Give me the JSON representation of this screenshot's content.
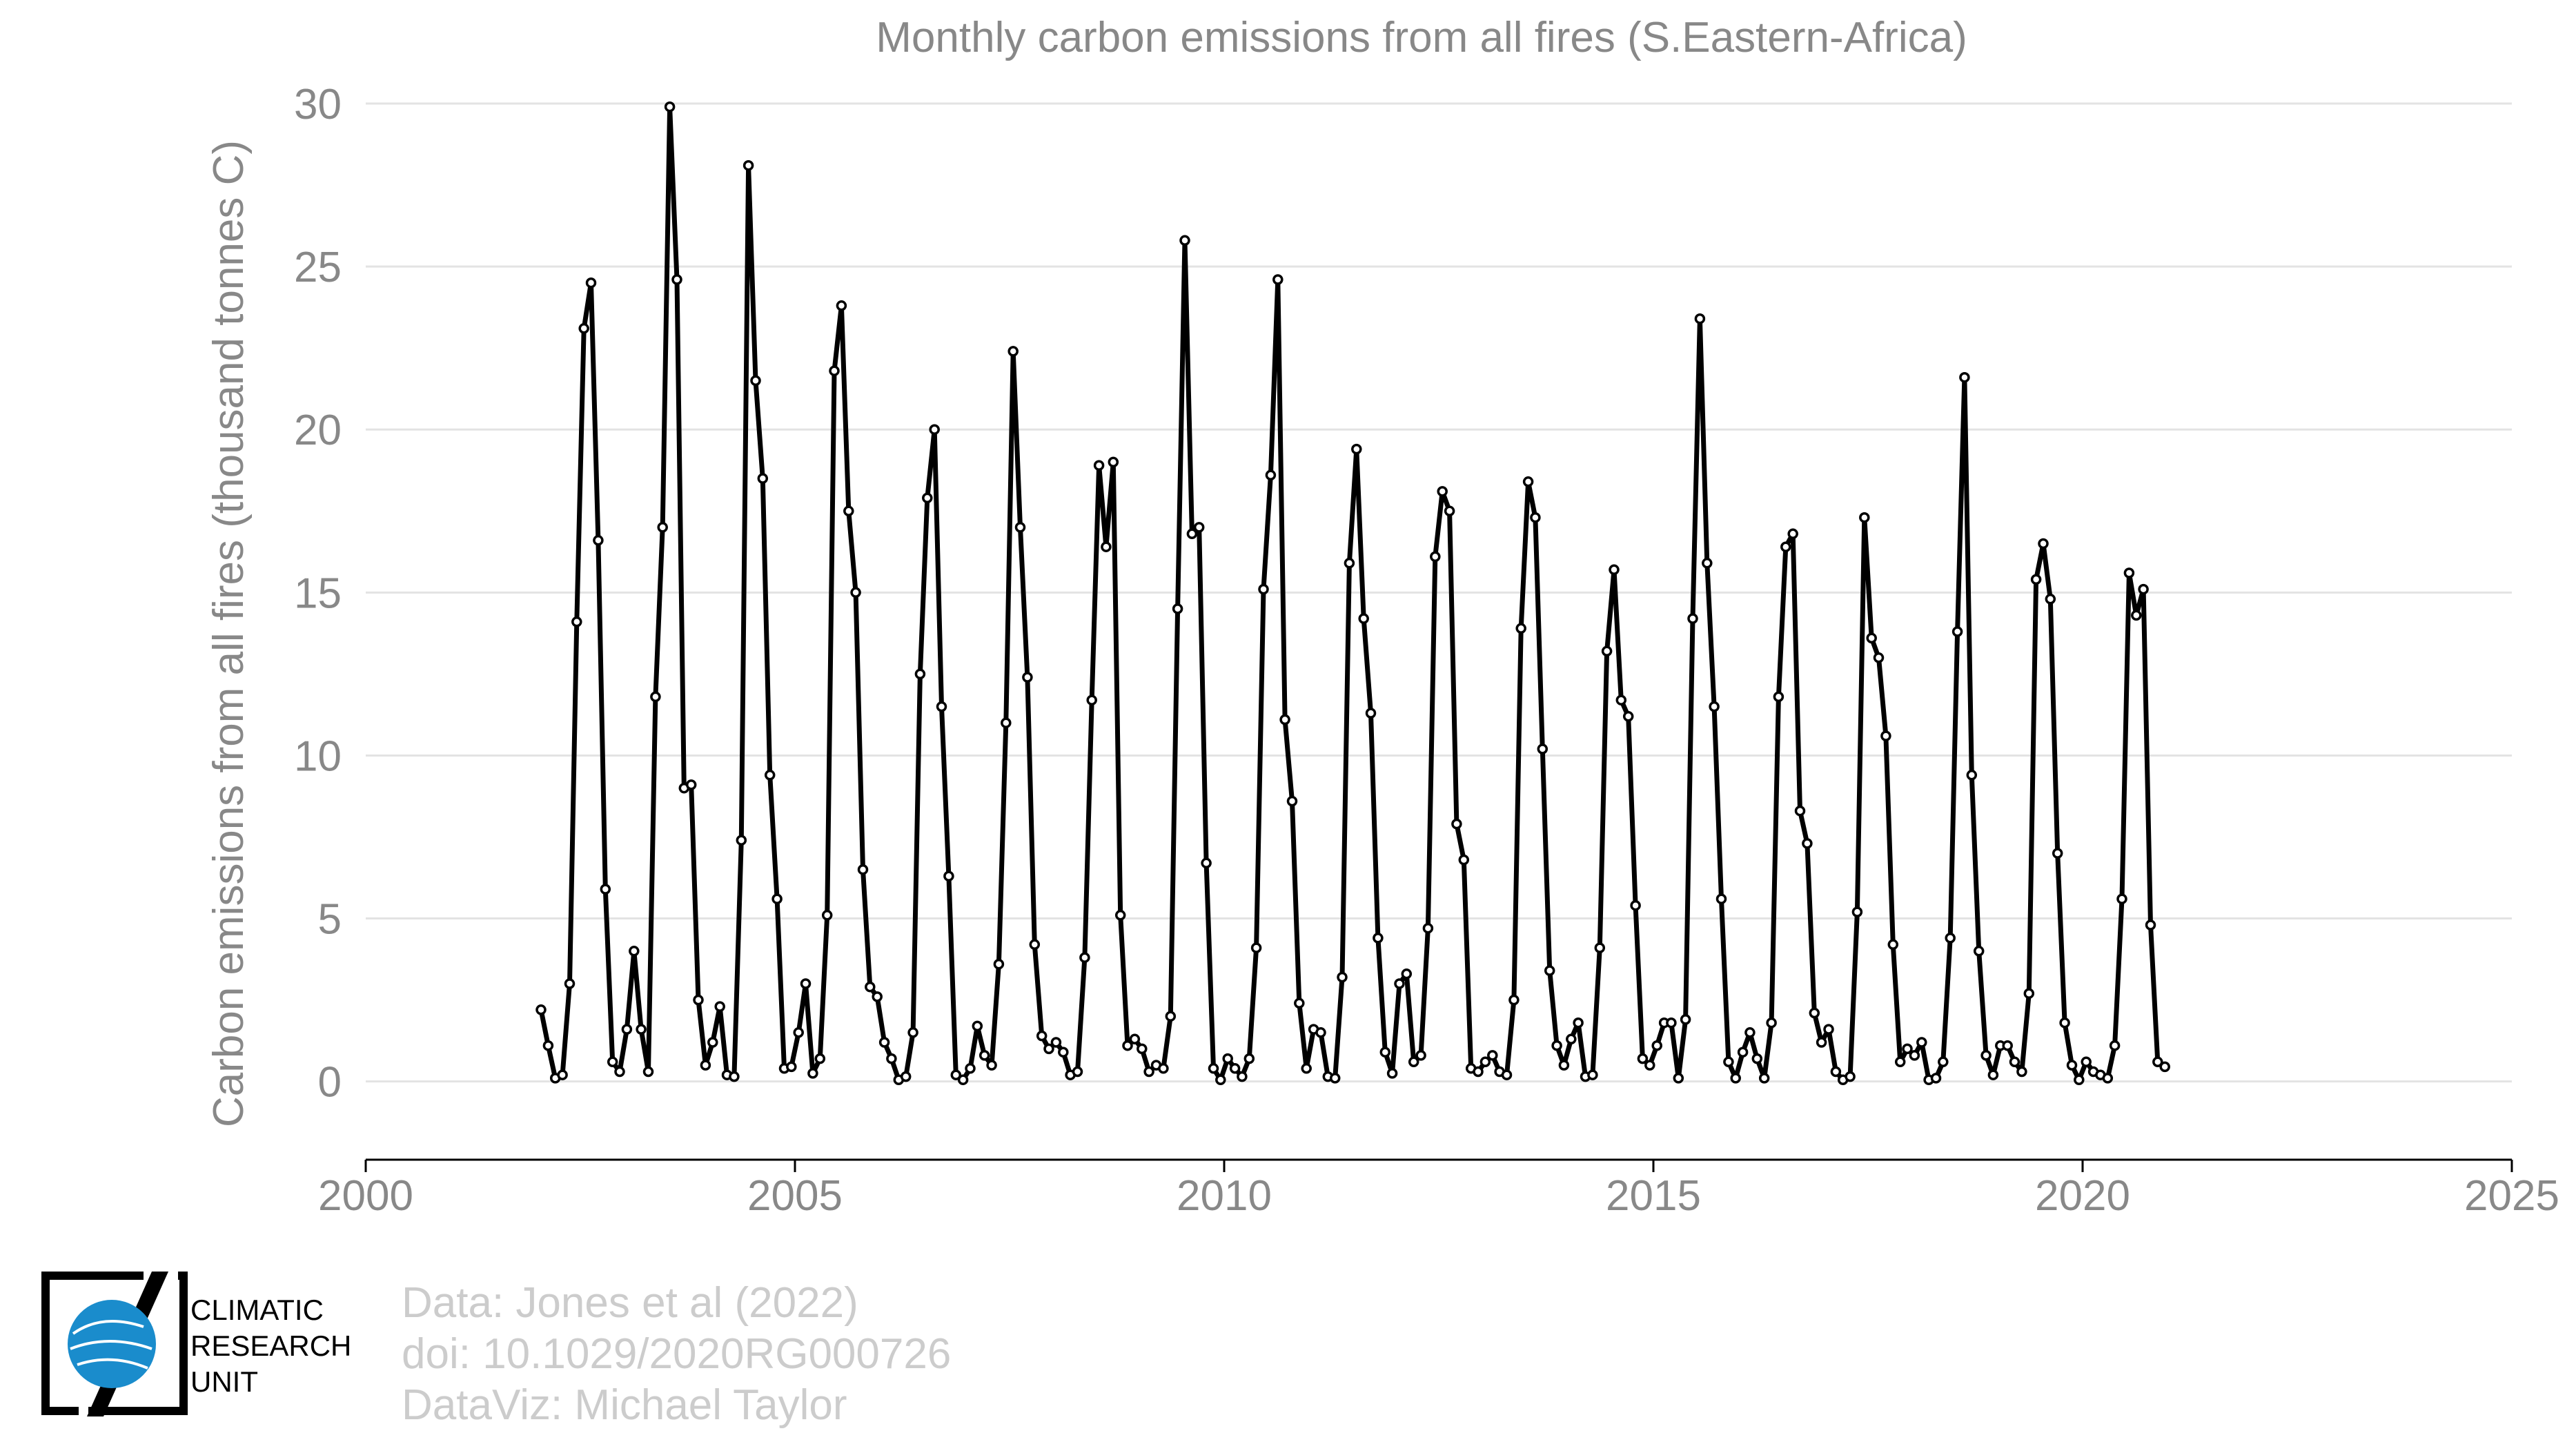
{
  "chart_data": {
    "type": "line",
    "title": "Monthly carbon emissions from all fires (S.Eastern-Africa)",
    "xlabel": "",
    "ylabel": "Carbon emissions from all fires (thousand tonnes C)",
    "xlim": [
      2000,
      2025
    ],
    "ylim": [
      -2.4,
      30
    ],
    "xticks": [
      2000,
      2005,
      2010,
      2015,
      2020,
      2025
    ],
    "yticks": [
      0,
      5,
      10,
      15,
      20,
      25,
      30
    ],
    "grid": "horizontal",
    "legend": "none",
    "series_color": "#000000",
    "start": "2002-01",
    "values": [
      2.2,
      1.1,
      0.1,
      0.2,
      3.0,
      14.1,
      23.1,
      24.5,
      16.6,
      5.9,
      0.6,
      0.3,
      1.6,
      4.0,
      1.6,
      0.3,
      11.8,
      17.0,
      29.9,
      24.6,
      9.0,
      9.1,
      2.5,
      0.5,
      1.2,
      2.3,
      0.2,
      0.15,
      7.4,
      28.1,
      21.5,
      18.5,
      9.4,
      5.6,
      0.4,
      0.45,
      1.5,
      3.0,
      0.25,
      0.7,
      5.1,
      21.8,
      23.8,
      17.5,
      15.0,
      6.5,
      2.9,
      2.6,
      1.2,
      0.7,
      0.05,
      0.15,
      1.5,
      12.5,
      17.9,
      20.0,
      11.5,
      6.3,
      0.2,
      0.05,
      0.4,
      1.7,
      0.8,
      0.5,
      3.6,
      11.0,
      22.4,
      17.0,
      12.4,
      4.2,
      1.4,
      1.0,
      1.2,
      0.9,
      0.2,
      0.3,
      3.8,
      11.7,
      18.9,
      16.4,
      19.0,
      5.1,
      1.1,
      1.3,
      1.0,
      0.3,
      0.5,
      0.4,
      2.0,
      14.5,
      25.8,
      16.8,
      17.0,
      6.7,
      0.4,
      0.05,
      0.7,
      0.4,
      0.15,
      0.7,
      4.1,
      15.1,
      18.6,
      24.6,
      11.1,
      8.6,
      2.4,
      0.4,
      1.6,
      1.5,
      0.15,
      0.1,
      3.2,
      15.9,
      19.4,
      14.2,
      11.3,
      4.4,
      0.9,
      0.25,
      3.0,
      3.3,
      0.6,
      0.8,
      4.7,
      16.1,
      18.1,
      17.5,
      7.9,
      6.8,
      0.4,
      0.3,
      0.6,
      0.8,
      0.3,
      0.2,
      2.5,
      13.9,
      18.4,
      17.3,
      10.2,
      3.4,
      1.1,
      0.5,
      1.3,
      1.8,
      0.15,
      0.2,
      4.1,
      13.2,
      15.7,
      11.7,
      11.2,
      5.4,
      0.7,
      0.5,
      1.1,
      1.8,
      1.8,
      0.1,
      1.9,
      14.2,
      23.4,
      15.9,
      11.5,
      5.6,
      0.6,
      0.1,
      0.9,
      1.5,
      0.7,
      0.1,
      1.8,
      11.8,
      16.4,
      16.8,
      8.3,
      7.3,
      2.1,
      1.2,
      1.6,
      0.3,
      0.05,
      0.15,
      5.2,
      17.3,
      13.6,
      13.0,
      10.6,
      4.2,
      0.6,
      1.0,
      0.8,
      1.2,
      0.05,
      0.1,
      0.6,
      4.4,
      13.8,
      21.6,
      9.4,
      4.0,
      0.8,
      0.2,
      1.1,
      1.1,
      0.6,
      0.3,
      2.7,
      15.4,
      16.5,
      14.8,
      7.0,
      1.8,
      0.5,
      0.05,
      0.6,
      0.3,
      0.2,
      0.1,
      1.1,
      5.6,
      15.6,
      14.3,
      15.1,
      4.8,
      0.6,
      0.45
    ]
  },
  "footer": {
    "source": "Data: Jones et al (2022)",
    "doi": "doi: 10.1029/2020RG000726",
    "dataviz": "DataViz: Michael Taylor"
  },
  "logo": {
    "line1": "CLIMATIC",
    "line2": "RESEARCH",
    "line3": "UNIT",
    "globe_color": "#1a8ccc"
  }
}
